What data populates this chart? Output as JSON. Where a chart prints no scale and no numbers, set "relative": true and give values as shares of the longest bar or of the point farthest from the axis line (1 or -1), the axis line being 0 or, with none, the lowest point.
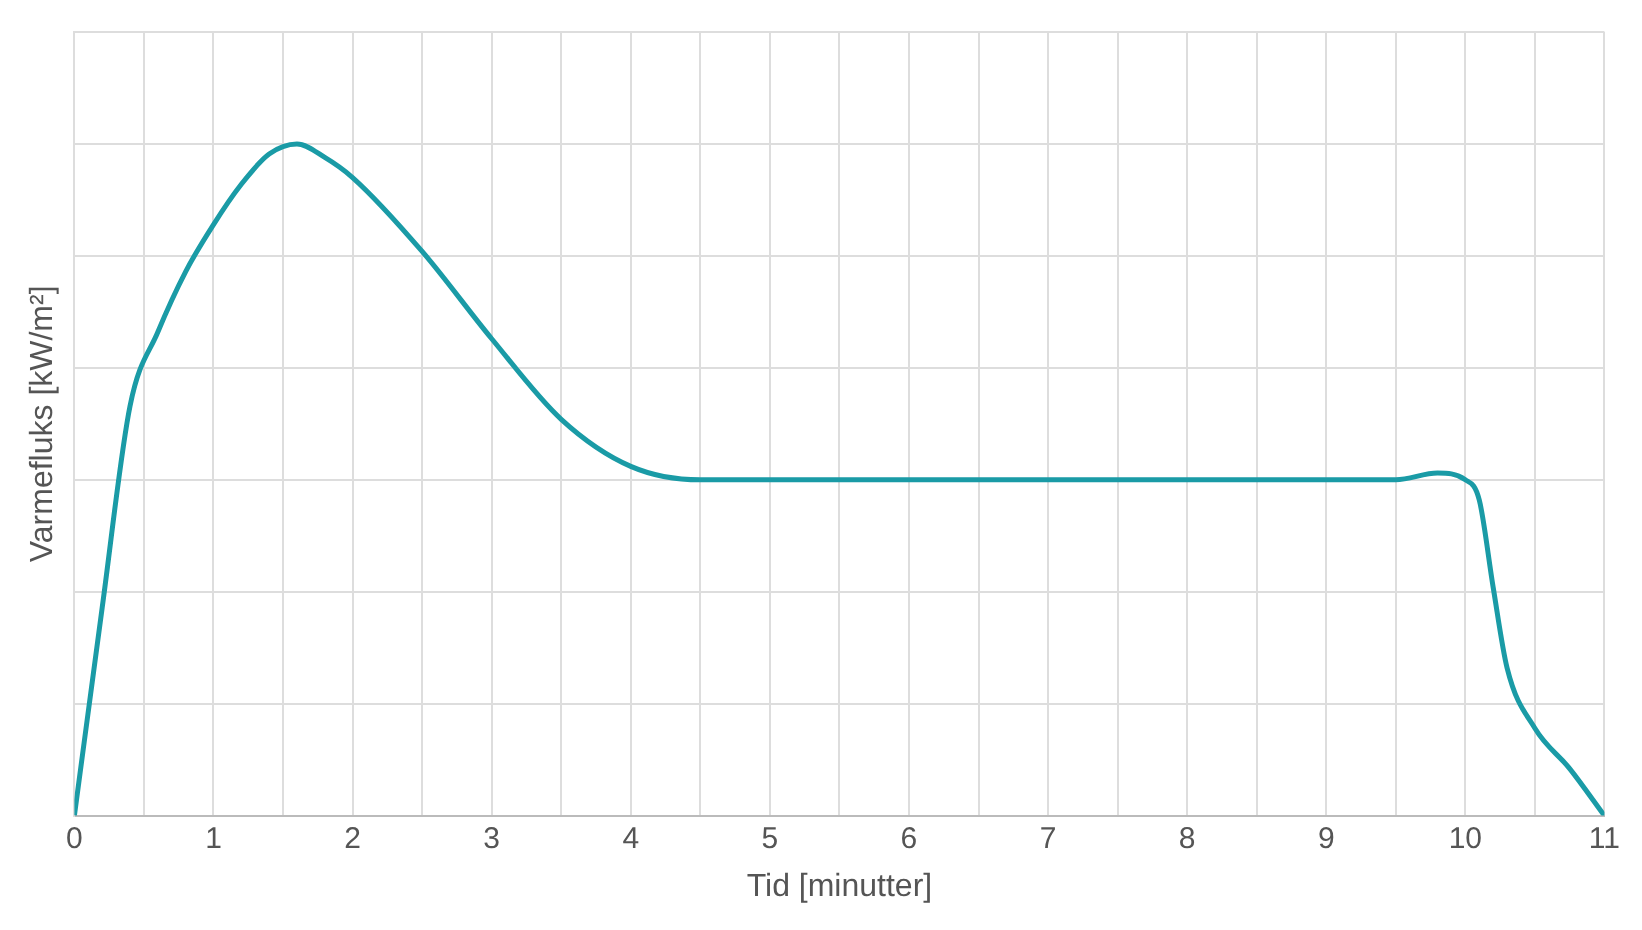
{
  "chart_data": {
    "type": "line",
    "xlabel": "Tid [minutter]",
    "ylabel": "Varmefluks [kW/m²]",
    "relative": true,
    "grid": true,
    "marker": "none",
    "line_style": "solid",
    "xlim": [
      0,
      11
    ],
    "xticks": [
      0,
      {
        "value": 0.5,
        "label": null
      },
      1,
      {
        "value": 1.5,
        "label": null
      },
      2,
      {
        "value": 2.5,
        "label": null
      },
      3,
      {
        "value": 3.5,
        "label": null
      },
      4,
      {
        "value": 4.5,
        "label": null
      },
      5,
      {
        "value": 5.5,
        "label": null
      },
      6,
      {
        "value": 6.5,
        "label": null
      },
      7,
      {
        "value": 7.5,
        "label": null
      },
      8,
      {
        "value": 8.5,
        "label": null
      },
      9,
      {
        "value": 9.5,
        "label": null
      },
      10,
      {
        "value": 10.5,
        "label": null
      },
      11
    ],
    "series": [
      {
        "color": "#1a9ba6",
        "x": [
          0,
          0.2,
          0.4,
          0.6,
          0.8,
          1.0,
          1.2,
          1.4,
          1.6,
          1.8,
          2.0,
          2.5,
          3.0,
          3.5,
          4.0,
          4.5,
          5,
          6,
          7,
          8,
          9,
          9.5,
          9.8,
          10.0,
          10.1,
          10.2,
          10.3,
          10.5,
          10.75,
          11
        ],
        "values": [
          0,
          0.31,
          0.61,
          0.72,
          0.81,
          0.88,
          0.94,
          0.985,
          1.0,
          0.98,
          0.95,
          0.84,
          0.71,
          0.59,
          0.52,
          0.5,
          0.5,
          0.5,
          0.5,
          0.5,
          0.5,
          0.5,
          0.51,
          0.5,
          0.47,
          0.34,
          0.22,
          0.13,
          0.07,
          0
        ]
      }
    ]
  }
}
